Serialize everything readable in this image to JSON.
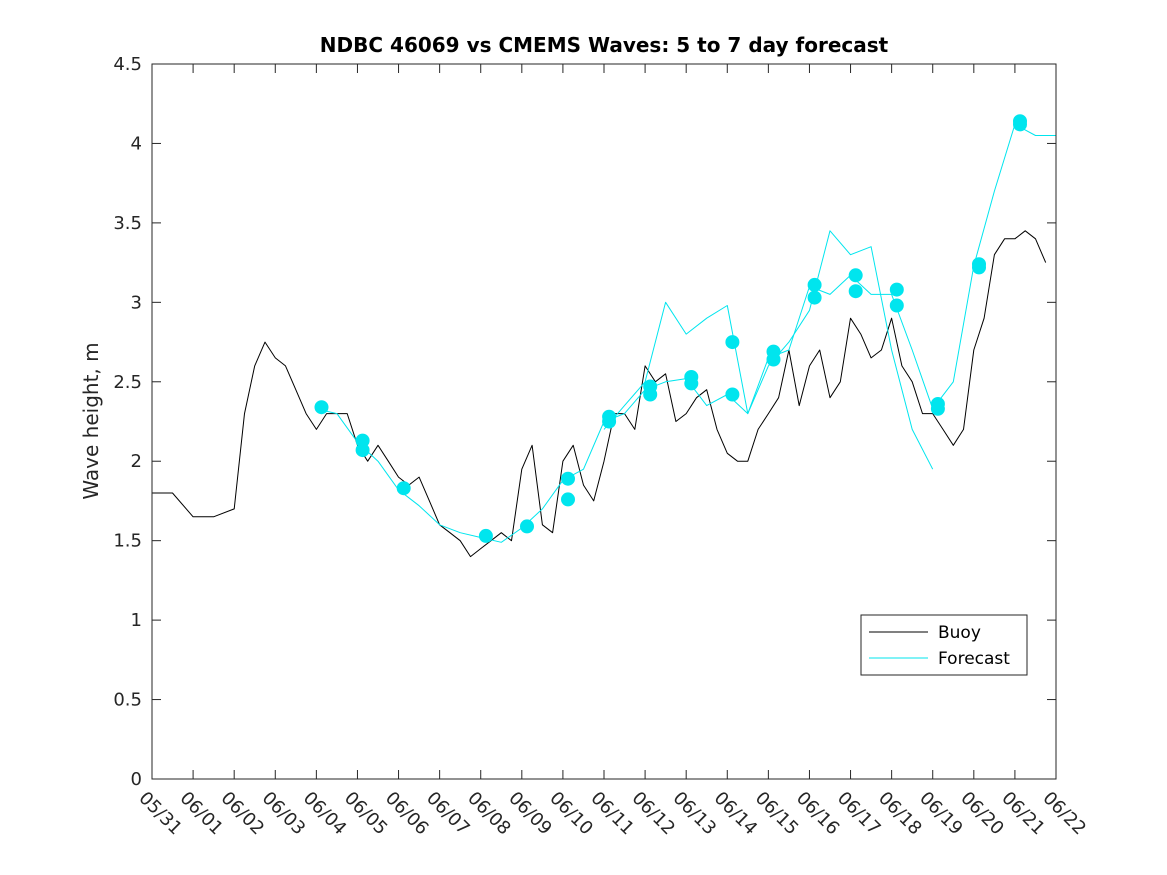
{
  "chart_data": {
    "type": "line",
    "title": "NDBC 46069 vs CMEMS Waves: 5 to 7 day forecast",
    "ylabel": "Wave height, m",
    "xlabel": "",
    "x_start": "05/31",
    "x_end": "06/22",
    "ylim": [
      0,
      4.5
    ],
    "yticks": [
      0,
      0.5,
      1,
      1.5,
      2,
      2.5,
      3,
      3.5,
      4,
      4.5
    ],
    "xtick_labels": [
      "05/31",
      "06/01",
      "06/02",
      "06/03",
      "06/04",
      "06/05",
      "06/06",
      "06/07",
      "06/08",
      "06/09",
      "06/10",
      "06/11",
      "06/12",
      "06/13",
      "06/14",
      "06/15",
      "06/16",
      "06/17",
      "06/18",
      "06/19",
      "06/20",
      "06/21",
      "06/22"
    ],
    "grid": false,
    "legend": {
      "placement": "bottom-right",
      "entries": [
        "Buoy",
        "Forecast"
      ]
    },
    "colors": {
      "buoy": "#000000",
      "forecast": "#00e5ee",
      "axes": "#262626"
    },
    "series": [
      {
        "name": "Buoy",
        "x": [
          "05/31 00:00",
          "05/31 12:00",
          "06/01 00:00",
          "06/01 12:00",
          "06/02 00:00",
          "06/02 06:00",
          "06/02 12:00",
          "06/02 18:00",
          "06/03 00:00",
          "06/03 06:00",
          "06/03 12:00",
          "06/03 18:00",
          "06/04 00:00",
          "06/04 06:00",
          "06/04 12:00",
          "06/04 18:00",
          "06/05 00:00",
          "06/05 06:00",
          "06/05 12:00",
          "06/05 18:00",
          "06/06 00:00",
          "06/06 06:00",
          "06/06 12:00",
          "06/06 18:00",
          "06/07 00:00",
          "06/07 06:00",
          "06/07 12:00",
          "06/07 18:00",
          "06/08 00:00",
          "06/08 06:00",
          "06/08 12:00",
          "06/08 18:00",
          "06/09 00:00",
          "06/09 06:00",
          "06/09 12:00",
          "06/09 18:00",
          "06/10 00:00",
          "06/10 06:00",
          "06/10 12:00",
          "06/10 18:00",
          "06/11 00:00",
          "06/11 06:00",
          "06/11 12:00",
          "06/11 18:00",
          "06/12 00:00",
          "06/12 06:00",
          "06/12 12:00",
          "06/12 18:00",
          "06/13 00:00",
          "06/13 06:00",
          "06/13 12:00",
          "06/13 18:00",
          "06/14 00:00",
          "06/14 06:00",
          "06/14 12:00",
          "06/14 18:00",
          "06/15 00:00",
          "06/15 06:00",
          "06/15 12:00",
          "06/15 18:00",
          "06/16 00:00",
          "06/16 06:00",
          "06/16 12:00",
          "06/16 18:00",
          "06/17 00:00",
          "06/17 06:00",
          "06/17 12:00",
          "06/17 18:00",
          "06/18 00:00",
          "06/18 06:00",
          "06/18 12:00",
          "06/18 18:00",
          "06/19 00:00",
          "06/19 06:00",
          "06/19 12:00",
          "06/19 18:00",
          "06/20 00:00",
          "06/20 06:00",
          "06/20 12:00",
          "06/20 18:00",
          "06/21 00:00",
          "06/21 06:00",
          "06/21 12:00",
          "06/21 18:00"
        ],
        "values": [
          1.8,
          1.8,
          1.65,
          1.65,
          1.7,
          2.3,
          2.6,
          2.75,
          2.65,
          2.6,
          2.45,
          2.3,
          2.2,
          2.3,
          2.3,
          2.3,
          2.1,
          2.0,
          2.1,
          2.0,
          1.9,
          1.85,
          1.9,
          1.75,
          1.6,
          1.55,
          1.5,
          1.4,
          1.45,
          1.5,
          1.55,
          1.5,
          1.95,
          2.1,
          1.6,
          1.55,
          2.0,
          2.1,
          1.85,
          1.75,
          2.0,
          2.3,
          2.3,
          2.2,
          2.6,
          2.5,
          2.55,
          2.25,
          2.3,
          2.4,
          2.45,
          2.2,
          2.05,
          2.0,
          2.0,
          2.2,
          2.3,
          2.4,
          2.7,
          2.35,
          2.6,
          2.7,
          2.4,
          2.5,
          2.9,
          2.8,
          2.65,
          2.7,
          2.9,
          2.6,
          2.5,
          2.3,
          2.3,
          2.2,
          2.1,
          2.2,
          2.7,
          2.9,
          3.3,
          3.4,
          3.4,
          3.45,
          3.4,
          3.25
        ]
      },
      {
        "name": "Forecast",
        "x": [
          "06/04 00:00",
          "06/04 12:00",
          "06/05 00:00",
          "06/05 12:00",
          "06/06 00:00",
          "06/06 12:00",
          "06/07 00:00",
          "06/07 12:00",
          "06/08 00:00",
          "06/08 12:00",
          "06/09 00:00",
          "06/09 12:00",
          "06/10 00:00",
          "06/10 12:00",
          "06/11 00:00",
          "06/11 12:00",
          "06/12 00:00",
          "06/12 12:00",
          "06/13 00:00",
          "06/13 12:00",
          "06/14 00:00",
          "06/14 12:00",
          "06/15 00:00",
          "06/15 12:00",
          "06/16 00:00",
          "06/16 12:00",
          "06/17 00:00",
          "06/17 12:00",
          "06/18 00:00",
          "06/18 12:00",
          "06/19 00:00",
          "06/19 12:00",
          "06/20 00:00",
          "06/20 12:00",
          "06/21 00:00",
          "06/21 12:00",
          "06/22 00:00"
        ],
        "values": [
          2.33,
          2.3,
          2.12,
          2.0,
          1.82,
          1.72,
          1.6,
          1.55,
          1.52,
          1.49,
          1.58,
          1.7,
          1.88,
          1.95,
          2.25,
          2.3,
          2.45,
          2.5,
          2.52,
          2.35,
          2.42,
          2.3,
          2.65,
          2.7,
          3.1,
          3.05,
          3.17,
          3.05,
          3.05,
          2.7,
          2.33,
          2.5,
          3.23,
          3.7,
          4.12,
          4.05,
          4.05
        ]
      },
      {
        "name": "Forecast",
        "x": [
          "06/11 00:00",
          "06/11 12:00",
          "06/12 00:00",
          "06/12 12:00",
          "06/13 00:00",
          "06/13 12:00",
          "06/14 00:00",
          "06/14 12:00",
          "06/15 00:00",
          "06/15 12:00",
          "06/16 00:00",
          "06/16 12:00",
          "06/17 00:00",
          "06/17 12:00",
          "06/18 00:00",
          "06/18 12:00",
          "06/19 00:00"
        ],
        "values": [
          2.2,
          2.35,
          2.5,
          3.0,
          2.8,
          2.9,
          2.98,
          2.3,
          2.6,
          2.75,
          2.95,
          3.45,
          3.3,
          3.35,
          2.7,
          2.2,
          1.95
        ]
      }
    ],
    "markers": {
      "series": "Forecast",
      "x": [
        "06/04 03:00",
        "06/05 03:00",
        "06/05 03:00",
        "06/06 03:00",
        "06/08 03:00",
        "06/09 03:00",
        "06/10 03:00",
        "06/10 03:00",
        "06/11 03:00",
        "06/11 03:00",
        "06/12 03:00",
        "06/12 03:00",
        "06/13 03:00",
        "06/13 03:00",
        "06/14 03:00",
        "06/14 03:00",
        "06/15 03:00",
        "06/15 03:00",
        "06/16 03:00",
        "06/16 03:00",
        "06/17 03:00",
        "06/17 03:00",
        "06/18 03:00",
        "06/18 03:00",
        "06/19 03:00",
        "06/19 03:00",
        "06/20 03:00",
        "06/20 03:00",
        "06/21 03:00",
        "06/21 03:00"
      ],
      "values": [
        2.34,
        2.13,
        2.07,
        1.83,
        1.53,
        1.59,
        1.89,
        1.76,
        2.28,
        2.25,
        2.47,
        2.42,
        2.53,
        2.49,
        2.75,
        2.42,
        2.69,
        2.64,
        3.11,
        3.03,
        3.17,
        3.07,
        3.08,
        2.98,
        2.36,
        2.33,
        3.24,
        3.22,
        4.14,
        4.12
      ]
    }
  }
}
